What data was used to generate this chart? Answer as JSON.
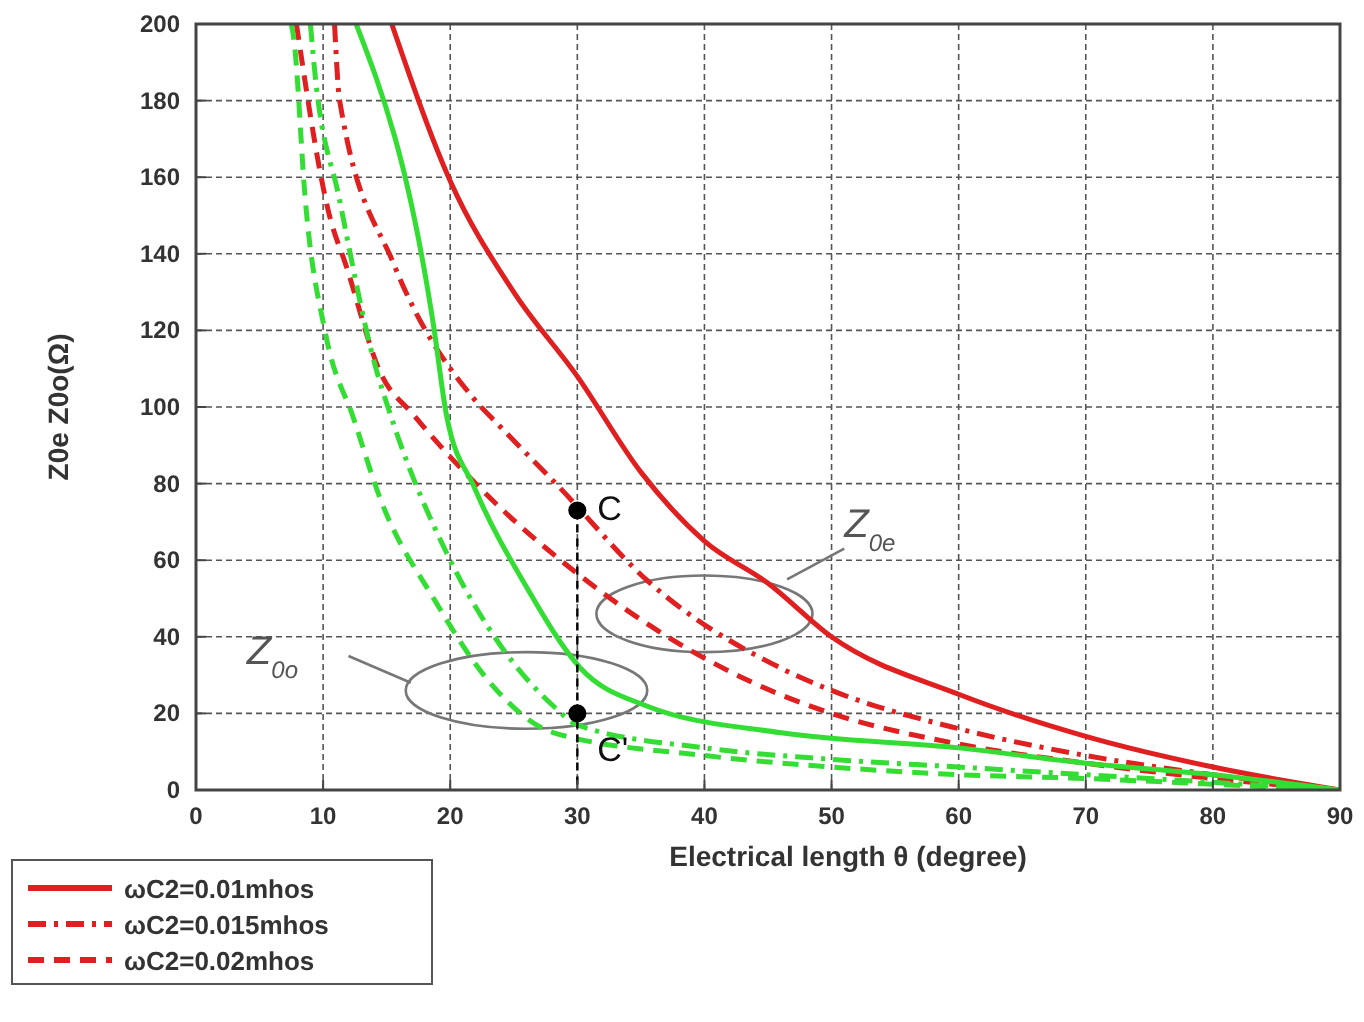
{
  "chart_data": {
    "type": "line",
    "xlabel": "Electrical length θ (degree)",
    "ylabel": "Z0e Z0o(Ω)",
    "xlim": [
      0,
      90
    ],
    "ylim": [
      0,
      200
    ],
    "xticks": [
      0,
      10,
      20,
      30,
      40,
      50,
      60,
      70,
      80,
      90
    ],
    "yticks": [
      0,
      20,
      40,
      60,
      80,
      100,
      120,
      140,
      160,
      180,
      200
    ],
    "grid": true,
    "legend": "bottom left",
    "marker": "none",
    "annotations": [
      {
        "text": "C",
        "x": 30,
        "y": 73
      },
      {
        "text": "C'",
        "x": 30,
        "y": 20
      },
      "Z$_{0e}$",
      "Z$_{0o}$"
    ],
    "series": [
      {
        "name": "ωC2=0.01mhos",
        "color": "#e02020",
        "line_style": "solid",
        "x": [
          15.4,
          20,
          25,
          30,
          35,
          40,
          45,
          50,
          60,
          70,
          80,
          90
        ],
        "values": [
          200,
          159,
          130,
          108,
          83,
          65,
          54,
          40,
          25,
          14,
          6,
          0
        ]
      },
      {
        "name": "ωC2=0.015mhos",
        "color": "#e02020",
        "line_style": "dashdot",
        "x": [
          10.9,
          11.3,
          15.6,
          21.9,
          23.9,
          28.6,
          35.4,
          45.9,
          50,
          60,
          70,
          80,
          90
        ],
        "values": [
          200,
          180,
          137,
          102,
          95,
          79,
          55,
          32,
          26,
          16,
          9,
          4,
          0
        ]
      },
      {
        "name": "ωC2=0.02mhos",
        "color": "#e02020",
        "line_style": "dashed",
        "x": [
          7.9,
          10.5,
          11.8,
          14.5,
          17.1,
          22.3,
          30.2,
          45.9,
          50,
          60,
          70,
          80,
          90
        ],
        "values": [
          200,
          150,
          137,
          109,
          98,
          79,
          56,
          25,
          20,
          12,
          7,
          3,
          0
        ]
      },
      {
        "color": "#33dd33",
        "line_style": "solid",
        "x": [
          12.6,
          18.7,
          19.7,
          21.9,
          26,
          30.2,
          35.4,
          45.9,
          60,
          70,
          80,
          90
        ],
        "values": [
          200,
          121,
          98,
          79,
          53,
          32,
          22,
          15,
          11,
          7,
          4,
          0
        ]
      },
      {
        "color": "#33dd33",
        "line_style": "dashdot",
        "x": [
          9,
          9.3,
          11.3,
          14,
          15.6,
          19.7,
          23.9,
          28.1,
          30,
          40,
          50,
          60,
          70,
          80,
          90
        ],
        "values": [
          200,
          189,
          154,
          112,
          95,
          62,
          38,
          22,
          17,
          11,
          8,
          6,
          4,
          2,
          0
        ]
      },
      {
        "color": "#33dd33",
        "line_style": "dashed",
        "x": [
          7.5,
          7.7,
          8.6,
          10.2,
          12.4,
          14.5,
          18.7,
          23.4,
          28.1,
          40,
          50,
          60,
          70,
          80,
          90
        ],
        "values": [
          200,
          196,
          154,
          119,
          97,
          76,
          50,
          27,
          15,
          9,
          6,
          4,
          3,
          1.5,
          0
        ]
      },
      {
        "type": "scatter",
        "color": "#000000",
        "marker": "circle",
        "x": [
          30,
          30
        ],
        "values": [
          73,
          20
        ]
      }
    ]
  }
}
